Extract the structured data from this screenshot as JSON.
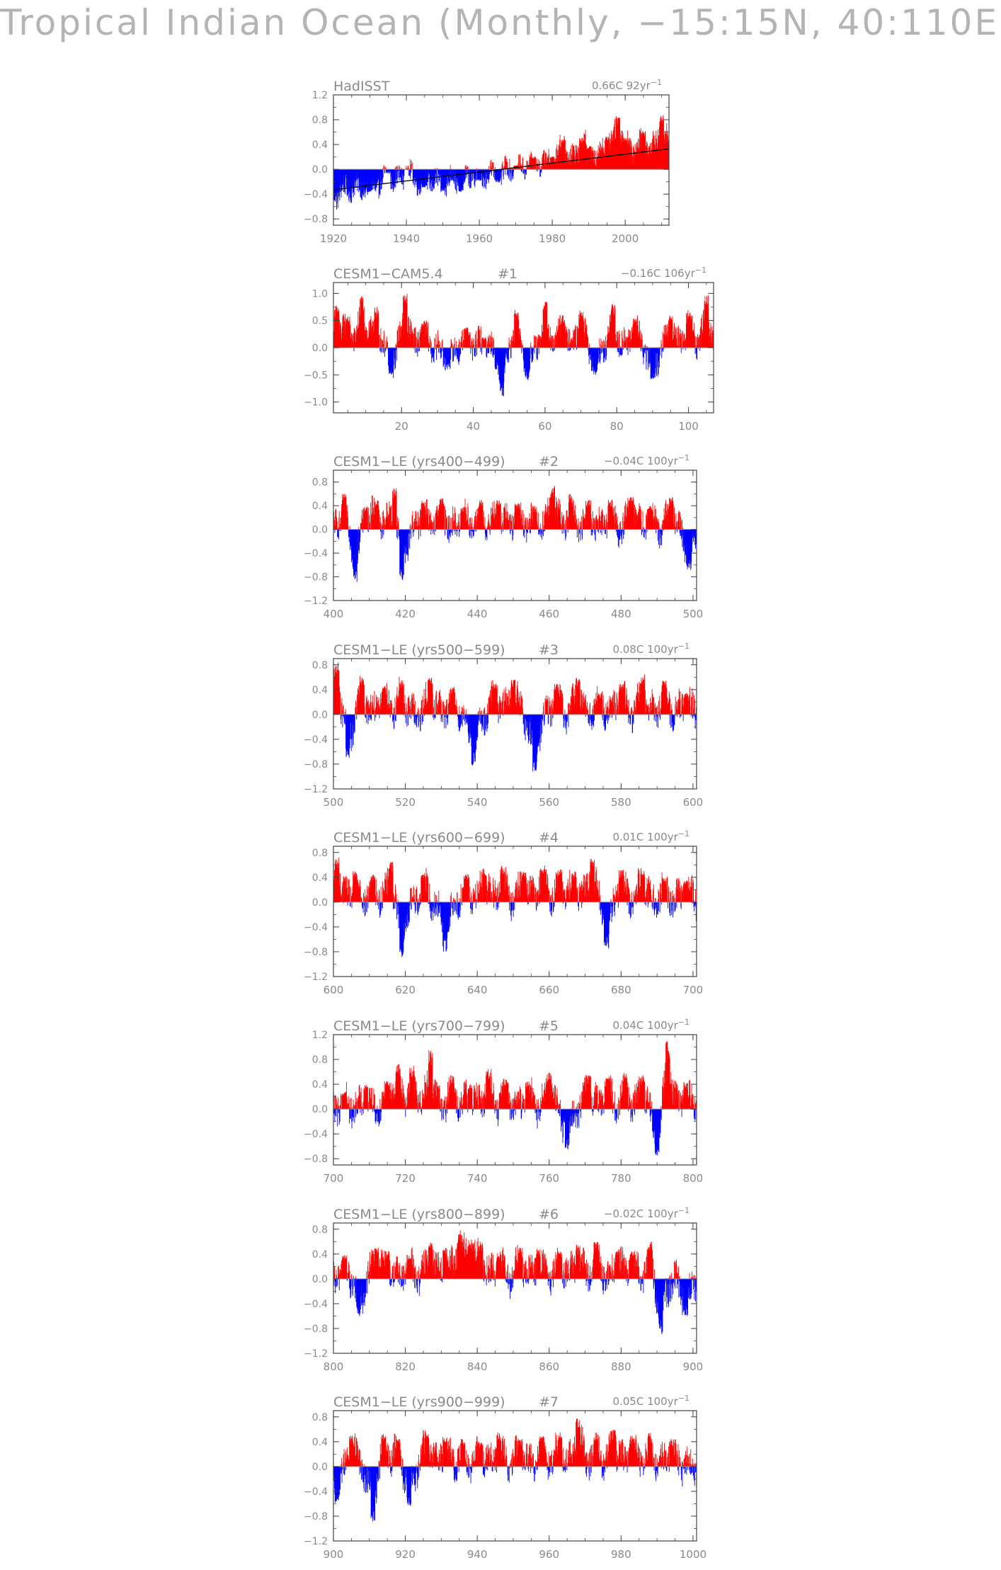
{
  "page": {
    "title": "Tropical Indian Ocean (Monthly, −15:15N, 40:110E)"
  },
  "style": {
    "positive_color": "#ff0000",
    "negative_color": "#0000ff",
    "text_color": "#8a8a8a",
    "axis_color": "#444444"
  },
  "chart_data": [
    {
      "type": "bar",
      "title": "HadISST",
      "trend_label": "0.66C 92yr",
      "trend_exponent": "−1",
      "x_range": [
        1920,
        2012
      ],
      "ylim": [
        -0.9,
        1.2
      ],
      "xticks": [
        1920,
        1940,
        1960,
        1980,
        2000
      ],
      "yticks": [
        -0.8,
        -0.4,
        0.0,
        0.4,
        0.8,
        1.2
      ],
      "ytick_labels": [
        "−0.8",
        "−0.4",
        "0.0",
        "0.4",
        "0.8",
        "1.2"
      ],
      "baseline": 0,
      "trend_line": [
        [
          1920,
          -0.33
        ],
        [
          2012,
          0.33
        ]
      ],
      "series": [
        {
          "x": [
            1920,
            1930,
            1935,
            1940,
            1945,
            1950,
            1955,
            1960,
            1965,
            1970,
            1975,
            1980,
            1983,
            1988,
            1990,
            1995,
            1998,
            2000,
            2005,
            2010
          ],
          "values": [
            -0.3,
            -0.15,
            0.3,
            0.35,
            -0.2,
            -0.35,
            -0.4,
            -0.2,
            -0.3,
            0.05,
            0.2,
            0.15,
            0.6,
            0.5,
            0.3,
            0.5,
            0.95,
            0.4,
            0.5,
            0.8
          ]
        }
      ]
    },
    {
      "type": "bar",
      "title": "CESM1−CAM5.4",
      "subtitle": "#1",
      "trend_label": "−0.16C 106yr",
      "trend_exponent": "−1",
      "x_range": [
        1,
        107
      ],
      "ylim": [
        -1.2,
        1.2
      ],
      "xticks": [
        20,
        40,
        60,
        80,
        100
      ],
      "yticks": [
        -1.0,
        -0.5,
        0.0,
        0.5,
        1.0
      ],
      "ytick_labels": [
        "−1.0",
        "−0.5",
        "0.0",
        "0.5",
        "1.0"
      ],
      "baseline": 0,
      "series": [
        {
          "x": [
            2,
            5,
            9,
            13,
            17,
            21,
            26,
            33,
            38,
            43,
            48,
            52,
            55,
            60,
            65,
            70,
            74,
            79,
            85,
            90,
            95,
            100,
            105
          ],
          "values": [
            0.8,
            0.6,
            0.95,
            0.75,
            -0.5,
            1.0,
            0.5,
            -0.4,
            0.4,
            0.2,
            -0.9,
            0.7,
            -0.6,
            0.85,
            0.6,
            0.7,
            -0.5,
            0.8,
            0.55,
            -0.6,
            0.6,
            0.7,
            1.0
          ]
        }
      ]
    },
    {
      "type": "bar",
      "title": "CESM1−LE (yrs400−499)",
      "subtitle": "#2",
      "trend_label": "−0.04C 100yr",
      "trend_exponent": "−1",
      "x_range": [
        400,
        501
      ],
      "ylim": [
        -1.2,
        1.0
      ],
      "xticks": [
        400,
        420,
        440,
        460,
        480,
        500
      ],
      "yticks": [
        -1.2,
        -0.8,
        -0.4,
        0.0,
        0.4,
        0.8
      ],
      "ytick_labels": [
        "−1.2",
        "−0.8",
        "−0.4",
        "0.0",
        "0.4",
        "0.8"
      ],
      "baseline": 0,
      "series": [
        {
          "x": [
            403,
            406,
            409,
            412,
            417,
            419,
            425,
            430,
            436,
            441,
            446,
            451,
            456,
            461,
            466,
            471,
            477,
            483,
            488,
            494,
            499
          ],
          "values": [
            0.6,
            -0.9,
            0.4,
            0.5,
            0.75,
            -0.9,
            0.5,
            0.55,
            0.4,
            0.5,
            0.5,
            0.45,
            0.4,
            0.75,
            0.6,
            0.5,
            0.5,
            0.55,
            0.4,
            0.55,
            -0.7
          ]
        }
      ]
    },
    {
      "type": "bar",
      "title": "CESM1−LE (yrs500−599)",
      "subtitle": "#3",
      "trend_label": "0.08C 100yr",
      "trend_exponent": "−1",
      "x_range": [
        500,
        601
      ],
      "ylim": [
        -1.2,
        0.9
      ],
      "xticks": [
        500,
        520,
        540,
        560,
        580,
        600
      ],
      "yticks": [
        -1.2,
        -0.8,
        -0.4,
        0.0,
        0.4,
        0.8
      ],
      "ytick_labels": [
        "−1.2",
        "−0.8",
        "−0.4",
        "0.0",
        "0.4",
        "0.8"
      ],
      "baseline": 0,
      "series": [
        {
          "x": [
            501,
            504,
            508,
            514,
            519,
            527,
            533,
            539,
            545,
            550,
            556,
            562,
            568,
            574,
            580,
            586,
            592,
            598
          ],
          "values": [
            0.85,
            -0.7,
            0.6,
            0.5,
            0.55,
            0.6,
            0.45,
            -0.85,
            0.5,
            0.6,
            -0.95,
            0.5,
            0.6,
            0.35,
            0.5,
            0.65,
            0.55,
            0.35
          ]
        }
      ]
    },
    {
      "type": "bar",
      "title": "CESM1−LE (yrs600−699)",
      "subtitle": "#4",
      "trend_label": "0.01C 100yr",
      "trend_exponent": "−1",
      "x_range": [
        600,
        701
      ],
      "ylim": [
        -1.2,
        0.9
      ],
      "xticks": [
        600,
        620,
        640,
        660,
        680,
        700
      ],
      "yticks": [
        -1.2,
        -0.8,
        -0.4,
        0.0,
        0.4,
        0.8
      ],
      "ytick_labels": [
        "−1.2",
        "−0.8",
        "−0.4",
        "0.0",
        "0.4",
        "0.8"
      ],
      "baseline": 0,
      "series": [
        {
          "x": [
            601,
            606,
            611,
            616,
            619,
            625,
            631,
            637,
            642,
            647,
            653,
            658,
            663,
            667,
            672,
            676,
            680,
            686,
            692,
            698
          ],
          "values": [
            0.75,
            0.5,
            0.45,
            0.65,
            -0.9,
            0.5,
            -0.8,
            0.45,
            0.55,
            0.6,
            0.5,
            0.6,
            0.55,
            0.5,
            0.75,
            -0.75,
            0.55,
            0.55,
            0.4,
            0.35
          ]
        }
      ]
    },
    {
      "type": "bar",
      "title": "CESM1−LE (yrs700−799)",
      "subtitle": "#5",
      "trend_label": "0.04C 100yr",
      "trend_exponent": "−1",
      "x_range": [
        700,
        801
      ],
      "ylim": [
        -0.9,
        1.2
      ],
      "xticks": [
        700,
        720,
        740,
        760,
        780,
        800
      ],
      "yticks": [
        -0.8,
        -0.4,
        0.0,
        0.4,
        0.8,
        1.2
      ],
      "ytick_labels": [
        "−0.8",
        "−0.4",
        "0.0",
        "0.4",
        "0.8",
        "1.2"
      ],
      "baseline": 0,
      "series": [
        {
          "x": [
            703,
            709,
            715,
            718,
            722,
            727,
            733,
            738,
            743,
            748,
            754,
            760,
            765,
            771,
            776,
            781,
            786,
            790,
            793,
            798
          ],
          "values": [
            0.3,
            0.4,
            0.45,
            0.75,
            0.7,
            0.95,
            0.55,
            0.4,
            0.65,
            0.5,
            0.45,
            0.6,
            -0.65,
            0.55,
            0.5,
            0.6,
            0.55,
            -0.75,
            1.1,
            0.45
          ]
        }
      ]
    },
    {
      "type": "bar",
      "title": "CESM1−LE (yrs800−899)",
      "subtitle": "#6",
      "trend_label": "−0.02C 100yr",
      "trend_exponent": "−1",
      "x_range": [
        800,
        901
      ],
      "ylim": [
        -1.2,
        0.9
      ],
      "xticks": [
        800,
        820,
        840,
        860,
        880,
        900
      ],
      "yticks": [
        -1.2,
        -0.8,
        -0.4,
        0.0,
        0.4,
        0.8
      ],
      "ytick_labels": [
        "−1.2",
        "−0.8",
        "−0.4",
        "0.0",
        "0.4",
        "0.8"
      ],
      "baseline": 0,
      "series": [
        {
          "x": [
            803,
            807,
            812,
            815,
            821,
            827,
            831,
            835,
            838,
            841,
            846,
            852,
            857,
            863,
            868,
            873,
            879,
            883,
            888,
            891,
            898
          ],
          "values": [
            0.4,
            -0.6,
            0.5,
            0.45,
            0.4,
            0.6,
            0.5,
            0.8,
            0.65,
            0.6,
            0.45,
            0.5,
            0.5,
            0.45,
            0.55,
            0.6,
            0.5,
            0.45,
            0.6,
            -0.9,
            -0.6
          ]
        }
      ]
    },
    {
      "type": "bar",
      "title": "CESM1−LE (yrs900−999)",
      "subtitle": "#7",
      "trend_label": "0.05C 100yr",
      "trend_exponent": "−1",
      "x_range": [
        900,
        1001
      ],
      "ylim": [
        -1.2,
        0.9
      ],
      "xticks": [
        900,
        920,
        940,
        960,
        980,
        1000
      ],
      "yticks": [
        -1.2,
        -0.8,
        -0.4,
        0.0,
        0.4,
        0.8
      ],
      "ytick_labels": [
        "−1.2",
        "−0.8",
        "−0.4",
        "0.0",
        "0.4",
        "0.8"
      ],
      "baseline": 0,
      "series": [
        {
          "x": [
            901,
            905,
            911,
            914,
            918,
            921,
            926,
            931,
            936,
            941,
            946,
            952,
            958,
            963,
            968,
            973,
            978,
            983,
            988,
            994
          ],
          "values": [
            -0.6,
            0.5,
            -0.9,
            0.55,
            0.5,
            -0.65,
            0.6,
            0.5,
            0.45,
            0.4,
            0.55,
            0.45,
            0.5,
            0.55,
            0.85,
            0.55,
            0.6,
            0.5,
            0.55,
            0.45
          ]
        }
      ]
    }
  ]
}
